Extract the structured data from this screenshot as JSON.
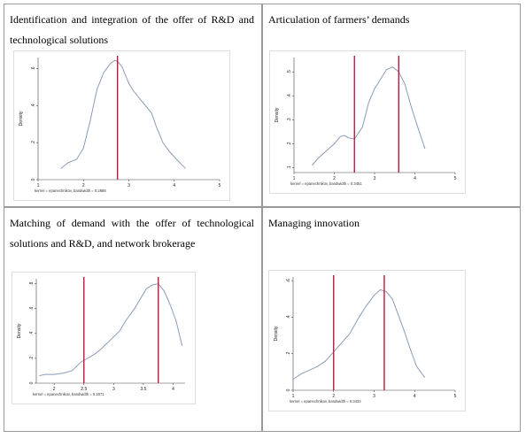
{
  "chart_data": [
    {
      "type": "line",
      "title": "Identification and integration of the offer of R&D and technological solutions",
      "ylabel": "Density",
      "note": "kernel = epanechnikov, bandwidth = 0.2888",
      "xlim": [
        1,
        5
      ],
      "ylim": [
        0,
        0.66
      ],
      "xticks": [
        {
          "v": 1,
          "label": "1"
        },
        {
          "v": 2,
          "label": "2"
        },
        {
          "v": 3,
          "label": "3"
        },
        {
          "v": 4,
          "label": "4"
        },
        {
          "v": 5,
          "label": "5"
        }
      ],
      "yticks": [
        {
          "v": 0,
          "label": "0"
        },
        {
          "v": 0.2,
          "label": ".2"
        },
        {
          "v": 0.4,
          "label": ".4"
        },
        {
          "v": 0.6,
          "label": ".6"
        }
      ],
      "vlines": [
        2.75
      ],
      "series": [
        {
          "x": [
            1.5,
            1.65,
            1.85,
            2.0,
            2.15,
            2.3,
            2.45,
            2.6,
            2.7,
            2.75,
            2.85,
            3.0,
            3.1,
            3.3,
            3.5,
            3.6,
            3.75,
            3.9,
            4.05,
            4.25
          ],
          "y": [
            0.06,
            0.09,
            0.11,
            0.17,
            0.32,
            0.49,
            0.58,
            0.63,
            0.645,
            0.64,
            0.61,
            0.52,
            0.48,
            0.42,
            0.36,
            0.29,
            0.2,
            0.15,
            0.11,
            0.06
          ]
        }
      ]
    },
    {
      "type": "line",
      "title": "Articulation of farmers’ demands",
      "ylabel": "Density",
      "note": "kernel = epanechnikov, bandwidth = 0.3451",
      "xlim": [
        1,
        5
      ],
      "ylim": [
        0.08,
        0.56
      ],
      "xticks": [
        {
          "v": 1,
          "label": "1"
        },
        {
          "v": 2,
          "label": "2"
        },
        {
          "v": 3,
          "label": "3"
        },
        {
          "v": 4,
          "label": "4"
        },
        {
          "v": 5,
          "label": "5"
        }
      ],
      "yticks": [
        {
          "v": 0.1,
          "label": ".1"
        },
        {
          "v": 0.2,
          "label": ".2"
        },
        {
          "v": 0.3,
          "label": ".3"
        },
        {
          "v": 0.4,
          "label": ".4"
        },
        {
          "v": 0.5,
          "label": ".5"
        }
      ],
      "vlines": [
        2.5,
        3.6
      ],
      "series": [
        {
          "x": [
            1.45,
            1.6,
            1.8,
            2.0,
            2.15,
            2.25,
            2.35,
            2.5,
            2.7,
            2.85,
            3.0,
            3.15,
            3.3,
            3.45,
            3.6,
            3.75,
            3.9,
            4.05,
            4.25
          ],
          "y": [
            0.11,
            0.14,
            0.17,
            0.2,
            0.23,
            0.235,
            0.225,
            0.22,
            0.27,
            0.37,
            0.43,
            0.47,
            0.51,
            0.52,
            0.5,
            0.45,
            0.36,
            0.28,
            0.18
          ]
        }
      ]
    },
    {
      "type": "line",
      "title": "Matching of demand with the offer of technological solutions and R&D, and network brokerage",
      "ylabel": "Density",
      "note": "kernel = epanechnikov, bandwidth = 0.2071",
      "xlim": [
        1.7,
        4.2
      ],
      "ylim": [
        0,
        0.84
      ],
      "xticks": [
        {
          "v": 2,
          "label": "2"
        },
        {
          "v": 2.5,
          "label": "2.5"
        },
        {
          "v": 3,
          "label": "3"
        },
        {
          "v": 3.5,
          "label": "3.5"
        },
        {
          "v": 4,
          "label": "4"
        }
      ],
      "yticks": [
        {
          "v": 0,
          "label": "0"
        },
        {
          "v": 0.2,
          "label": ".2"
        },
        {
          "v": 0.4,
          "label": ".4"
        },
        {
          "v": 0.6,
          "label": ".6"
        },
        {
          "v": 0.8,
          "label": ".8"
        }
      ],
      "vlines": [
        2.5,
        3.75
      ],
      "series": [
        {
          "x": [
            1.75,
            1.85,
            2.0,
            2.15,
            2.3,
            2.45,
            2.6,
            2.7,
            2.8,
            2.95,
            3.1,
            3.2,
            3.35,
            3.45,
            3.55,
            3.65,
            3.75,
            3.85,
            3.95,
            4.05,
            4.15
          ],
          "y": [
            0.06,
            0.07,
            0.07,
            0.08,
            0.1,
            0.17,
            0.21,
            0.24,
            0.28,
            0.35,
            0.42,
            0.5,
            0.6,
            0.68,
            0.76,
            0.79,
            0.8,
            0.74,
            0.63,
            0.5,
            0.3
          ]
        }
      ]
    },
    {
      "type": "line",
      "title": "Managing innovation",
      "ylabel": "Density",
      "note": "kernel = epanechnikov, bandwidth = 0.3432",
      "xlim": [
        1,
        5
      ],
      "ylim": [
        0,
        0.62
      ],
      "xticks": [
        {
          "v": 1,
          "label": "1"
        },
        {
          "v": 2,
          "label": "2"
        },
        {
          "v": 3,
          "label": "3"
        },
        {
          "v": 4,
          "label": "4"
        },
        {
          "v": 5,
          "label": "5"
        }
      ],
      "yticks": [
        {
          "v": 0,
          "label": "0"
        },
        {
          "v": 0.2,
          "label": ".2"
        },
        {
          "v": 0.4,
          "label": ".4"
        },
        {
          "v": 0.6,
          "label": ".6"
        }
      ],
      "vlines": [
        2,
        3.25
      ],
      "series": [
        {
          "x": [
            1.0,
            1.2,
            1.4,
            1.6,
            1.8,
            2.0,
            2.2,
            2.4,
            2.6,
            2.8,
            3.0,
            3.15,
            3.3,
            3.45,
            3.6,
            3.75,
            3.9,
            4.05,
            4.25
          ],
          "y": [
            0.06,
            0.09,
            0.11,
            0.13,
            0.16,
            0.21,
            0.26,
            0.31,
            0.39,
            0.46,
            0.52,
            0.55,
            0.54,
            0.5,
            0.41,
            0.32,
            0.22,
            0.13,
            0.07
          ]
        }
      ]
    }
  ]
}
